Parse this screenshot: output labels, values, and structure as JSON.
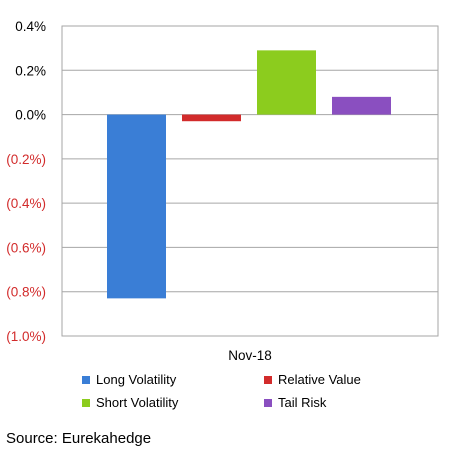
{
  "chart_data": {
    "type": "bar",
    "categories": [
      "Nov-18"
    ],
    "series": [
      {
        "name": "Long Volatility",
        "values": [
          -0.83
        ],
        "color": "#3a7ed6"
      },
      {
        "name": "Relative Value",
        "values": [
          -0.03
        ],
        "color": "#d22b2b"
      },
      {
        "name": "Short Volatility",
        "values": [
          0.29
        ],
        "color": "#8ccc1e"
      },
      {
        "name": "Tail Risk",
        "values": [
          0.08
        ],
        "color": "#8a4fc0"
      }
    ],
    "ylim": [
      -1.0,
      0.4
    ],
    "yticks": [
      0.4,
      0.2,
      0.0,
      -0.2,
      -0.4,
      -0.6,
      -0.8,
      -1.0
    ],
    "ytick_labels": [
      "0.4%",
      "0.2%",
      "0.0%",
      "(0.2%)",
      "(0.4%)",
      "(0.6%)",
      "(0.8%)",
      "(1.0%)"
    ],
    "positive_label_color": "#000000",
    "negative_label_color": "#d22b2b",
    "grid": true,
    "legend_position": "bottom"
  },
  "source": "Source: Eurekahedge"
}
